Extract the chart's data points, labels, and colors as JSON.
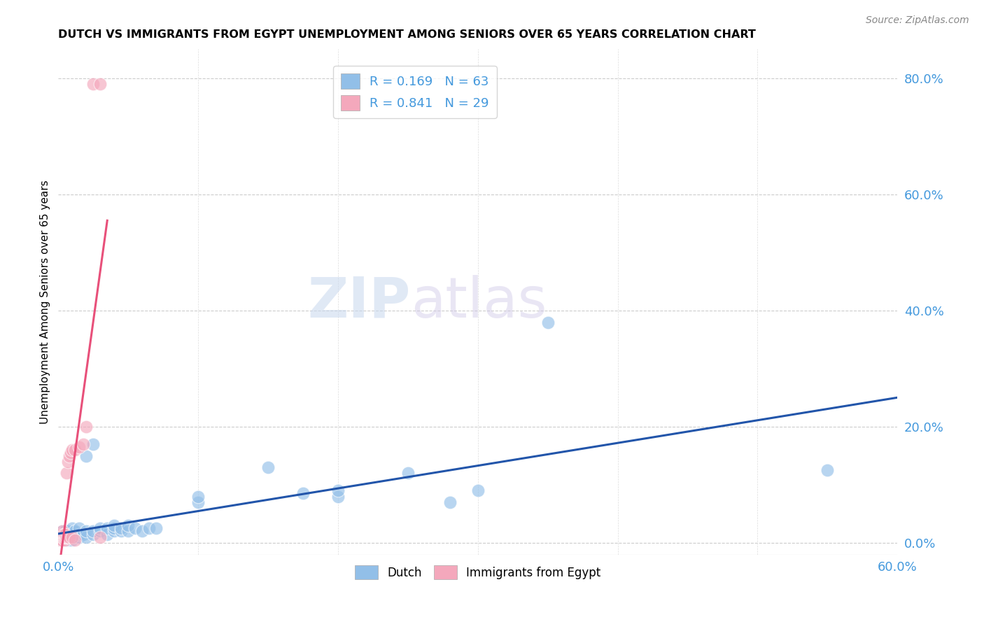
{
  "title": "DUTCH VS IMMIGRANTS FROM EGYPT UNEMPLOYMENT AMONG SENIORS OVER 65 YEARS CORRELATION CHART",
  "source": "Source: ZipAtlas.com",
  "ylabel": "Unemployment Among Seniors over 65 years",
  "xlim": [
    0.0,
    0.6
  ],
  "ylim": [
    -0.02,
    0.85
  ],
  "xticks": [
    0.0,
    0.1,
    0.2,
    0.3,
    0.4,
    0.5,
    0.6
  ],
  "xtick_labels": [
    "0.0%",
    "",
    "",
    "",
    "",
    "",
    "60.0%"
  ],
  "ytick_labels_right": [
    "0.0%",
    "20.0%",
    "40.0%",
    "60.0%",
    "80.0%"
  ],
  "yticks_right": [
    0.0,
    0.2,
    0.4,
    0.6,
    0.8
  ],
  "dutch_color": "#92BFE8",
  "egypt_color": "#F4A8BC",
  "dutch_line_color": "#2255AA",
  "egypt_line_color": "#E8507A",
  "dutch_R": 0.169,
  "dutch_N": 63,
  "egypt_R": 0.841,
  "egypt_N": 29,
  "watermark_zip": "ZIP",
  "watermark_atlas": "atlas",
  "dutch_points": [
    [
      0.001,
      0.005
    ],
    [
      0.001,
      0.01
    ],
    [
      0.002,
      0.005
    ],
    [
      0.002,
      0.01
    ],
    [
      0.002,
      0.015
    ],
    [
      0.003,
      0.005
    ],
    [
      0.003,
      0.01
    ],
    [
      0.003,
      0.015
    ],
    [
      0.003,
      0.02
    ],
    [
      0.004,
      0.005
    ],
    [
      0.004,
      0.01
    ],
    [
      0.004,
      0.015
    ],
    [
      0.005,
      0.005
    ],
    [
      0.005,
      0.01
    ],
    [
      0.005,
      0.02
    ],
    [
      0.006,
      0.005
    ],
    [
      0.006,
      0.015
    ],
    [
      0.007,
      0.01
    ],
    [
      0.007,
      0.02
    ],
    [
      0.008,
      0.005
    ],
    [
      0.008,
      0.015
    ],
    [
      0.009,
      0.01
    ],
    [
      0.01,
      0.005
    ],
    [
      0.01,
      0.015
    ],
    [
      0.01,
      0.025
    ],
    [
      0.012,
      0.01
    ],
    [
      0.012,
      0.02
    ],
    [
      0.015,
      0.01
    ],
    [
      0.015,
      0.015
    ],
    [
      0.015,
      0.025
    ],
    [
      0.018,
      0.015
    ],
    [
      0.02,
      0.01
    ],
    [
      0.02,
      0.02
    ],
    [
      0.02,
      0.15
    ],
    [
      0.025,
      0.015
    ],
    [
      0.025,
      0.02
    ],
    [
      0.025,
      0.17
    ],
    [
      0.03,
      0.02
    ],
    [
      0.03,
      0.025
    ],
    [
      0.035,
      0.015
    ],
    [
      0.035,
      0.025
    ],
    [
      0.04,
      0.02
    ],
    [
      0.04,
      0.025
    ],
    [
      0.04,
      0.03
    ],
    [
      0.045,
      0.02
    ],
    [
      0.045,
      0.025
    ],
    [
      0.05,
      0.02
    ],
    [
      0.05,
      0.03
    ],
    [
      0.055,
      0.025
    ],
    [
      0.06,
      0.02
    ],
    [
      0.065,
      0.025
    ],
    [
      0.07,
      0.025
    ],
    [
      0.1,
      0.07
    ],
    [
      0.1,
      0.08
    ],
    [
      0.15,
      0.13
    ],
    [
      0.175,
      0.085
    ],
    [
      0.2,
      0.08
    ],
    [
      0.2,
      0.09
    ],
    [
      0.25,
      0.12
    ],
    [
      0.28,
      0.07
    ],
    [
      0.3,
      0.09
    ],
    [
      0.35,
      0.38
    ],
    [
      0.55,
      0.125
    ]
  ],
  "egypt_points": [
    [
      0.001,
      0.005
    ],
    [
      0.001,
      0.01
    ],
    [
      0.002,
      0.005
    ],
    [
      0.002,
      0.015
    ],
    [
      0.003,
      0.005
    ],
    [
      0.003,
      0.01
    ],
    [
      0.003,
      0.02
    ],
    [
      0.004,
      0.01
    ],
    [
      0.004,
      0.015
    ],
    [
      0.005,
      0.005
    ],
    [
      0.005,
      0.01
    ],
    [
      0.005,
      0.015
    ],
    [
      0.006,
      0.01
    ],
    [
      0.006,
      0.12
    ],
    [
      0.007,
      0.01
    ],
    [
      0.007,
      0.14
    ],
    [
      0.008,
      0.01
    ],
    [
      0.008,
      0.15
    ],
    [
      0.009,
      0.155
    ],
    [
      0.01,
      0.01
    ],
    [
      0.01,
      0.16
    ],
    [
      0.012,
      0.16
    ],
    [
      0.012,
      0.005
    ],
    [
      0.015,
      0.165
    ],
    [
      0.018,
      0.17
    ],
    [
      0.02,
      0.2
    ],
    [
      0.025,
      0.79
    ],
    [
      0.03,
      0.79
    ],
    [
      0.03,
      0.01
    ]
  ]
}
